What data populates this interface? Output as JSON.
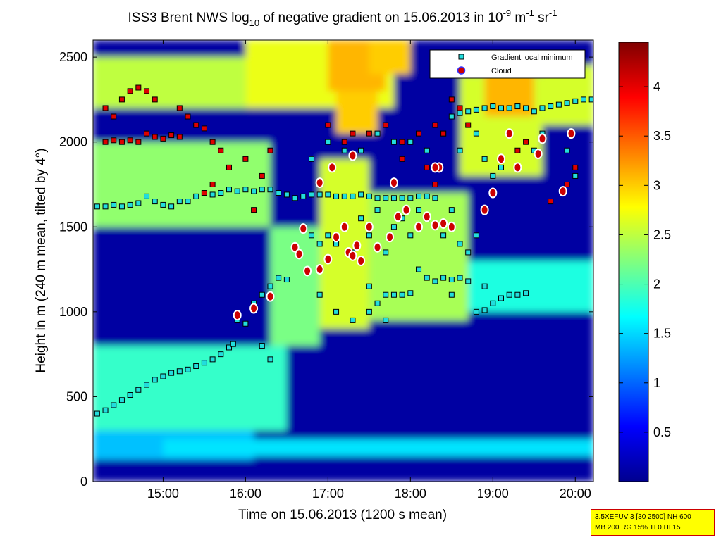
{
  "chart_data": {
    "type": "heatmap",
    "title": {
      "p1": "ISS3 Brent NWS log",
      "sub1": "10",
      "p2": " of negative gradient on 15.06.2013 in 10",
      "sup1": "-9",
      "p3": " m",
      "sup2": "-1",
      "p4": " sr",
      "sup3": "-1"
    },
    "xlabel": "Time on 15.06.2013 (1200 s mean)",
    "ylabel": "Height in m (240 m mean, tilted by 4°)",
    "xlim": [
      14.15,
      20.22
    ],
    "ylim": [
      0,
      2600
    ],
    "x_ticks": [
      {
        "value": 15,
        "label": "15:00"
      },
      {
        "value": 16,
        "label": "16:00"
      },
      {
        "value": 17,
        "label": "17:00"
      },
      {
        "value": 18,
        "label": "18:00"
      },
      {
        "value": 19,
        "label": "19:00"
      },
      {
        "value": 20,
        "label": "20:00"
      }
    ],
    "y_ticks": [
      {
        "value": 0,
        "label": "0"
      },
      {
        "value": 500,
        "label": "500"
      },
      {
        "value": 1000,
        "label": "1000"
      },
      {
        "value": 1500,
        "label": "1500"
      },
      {
        "value": 2000,
        "label": "2000"
      },
      {
        "value": 2500,
        "label": "2500"
      }
    ],
    "colorbar": {
      "range": [
        0,
        4.45
      ],
      "ticks": [
        {
          "value": 0.5,
          "label": "0.5"
        },
        {
          "value": 1,
          "label": "1"
        },
        {
          "value": 1.5,
          "label": "1.5"
        },
        {
          "value": 2,
          "label": "2"
        },
        {
          "value": 2.5,
          "label": "2.5"
        },
        {
          "value": 3,
          "label": "3"
        },
        {
          "value": 3.5,
          "label": "3.5"
        },
        {
          "value": 4,
          "label": "4"
        }
      ],
      "colormap": "jet"
    },
    "legend": {
      "position": "top-right",
      "entries": [
        "Gradient local minimum",
        "Cloud"
      ]
    },
    "bands": [
      {
        "x_from": 14.15,
        "x_to": 20.22,
        "y_from": 0,
        "y_to": 2600,
        "value": 0.15
      },
      {
        "x_from": 14.15,
        "x_to": 16.1,
        "y_from": 130,
        "y_to": 300,
        "value": 1.4
      },
      {
        "x_from": 14.15,
        "x_to": 16.5,
        "y_from": 300,
        "y_to": 800,
        "value": 1.9
      },
      {
        "x_from": 15.0,
        "x_to": 20.22,
        "y_from": 150,
        "y_to": 250,
        "value": 1.55
      },
      {
        "x_from": 14.15,
        "x_to": 16.3,
        "y_from": 1500,
        "y_to": 2000,
        "value": 2.3
      },
      {
        "x_from": 14.15,
        "x_to": 16.0,
        "y_from": 2200,
        "y_to": 2500,
        "value": 2.5
      },
      {
        "x_from": 16.0,
        "x_to": 17.8,
        "y_from": 2200,
        "y_to": 2600,
        "value": 2.7
      },
      {
        "x_from": 16.3,
        "x_to": 16.9,
        "y_from": 800,
        "y_to": 1500,
        "value": 2.2
      },
      {
        "x_from": 16.9,
        "x_to": 17.5,
        "y_from": 900,
        "y_to": 1900,
        "value": 2.6
      },
      {
        "x_from": 17.5,
        "x_to": 18.7,
        "y_from": 950,
        "y_to": 1700,
        "value": 2.4
      },
      {
        "x_from": 18.7,
        "x_to": 20.22,
        "y_from": 1000,
        "y_to": 1300,
        "value": 1.8
      },
      {
        "x_from": 18.6,
        "x_to": 19.6,
        "y_from": 1800,
        "y_to": 2400,
        "value": 2.6
      },
      {
        "x_from": 19.6,
        "x_to": 20.22,
        "y_from": 2100,
        "y_to": 2450,
        "value": 2.6
      },
      {
        "x_from": 17.1,
        "x_to": 17.6,
        "y_from": 2050,
        "y_to": 2300,
        "value": 3.0
      },
      {
        "x_from": 18.9,
        "x_to": 19.5,
        "y_from": 2150,
        "y_to": 2450,
        "value": 3.1
      },
      {
        "x_from": 17.0,
        "x_to": 17.7,
        "y_from": 2300,
        "y_to": 2600,
        "value": 3.1
      },
      {
        "x_from": 17.5,
        "x_to": 18.0,
        "y_from": 2400,
        "y_to": 2600,
        "value": 3.0
      }
    ],
    "series": [
      {
        "name": "Gradient local minimum",
        "points": [
          [
            14.2,
            400
          ],
          [
            14.3,
            420
          ],
          [
            14.4,
            450
          ],
          [
            14.5,
            480
          ],
          [
            14.6,
            510
          ],
          [
            14.7,
            540
          ],
          [
            14.8,
            570
          ],
          [
            14.9,
            600
          ],
          [
            15.0,
            620
          ],
          [
            15.1,
            640
          ],
          [
            15.2,
            650
          ],
          [
            15.3,
            660
          ],
          [
            15.4,
            680
          ],
          [
            15.5,
            700
          ],
          [
            15.6,
            720
          ],
          [
            15.7,
            750
          ],
          [
            15.8,
            790
          ],
          [
            15.85,
            810
          ],
          [
            14.2,
            1620
          ],
          [
            14.3,
            1620
          ],
          [
            14.4,
            1630
          ],
          [
            14.5,
            1620
          ],
          [
            14.6,
            1630
          ],
          [
            14.7,
            1640
          ],
          [
            14.8,
            1680
          ],
          [
            14.9,
            1650
          ],
          [
            15.0,
            1630
          ],
          [
            15.1,
            1620
          ],
          [
            15.2,
            1650
          ],
          [
            15.3,
            1650
          ],
          [
            15.4,
            1680
          ],
          [
            15.5,
            1700
          ],
          [
            15.6,
            1690
          ],
          [
            15.7,
            1700
          ],
          [
            15.8,
            1720
          ],
          [
            15.9,
            1710
          ],
          [
            16.0,
            1720
          ],
          [
            16.1,
            1710
          ],
          [
            16.2,
            1720
          ],
          [
            16.3,
            1720
          ],
          [
            16.4,
            1700
          ],
          [
            16.5,
            1690
          ],
          [
            16.6,
            1670
          ],
          [
            16.7,
            1680
          ],
          [
            16.8,
            1690
          ],
          [
            16.9,
            1690
          ],
          [
            17.0,
            1690
          ],
          [
            17.1,
            1680
          ],
          [
            17.2,
            1680
          ],
          [
            17.3,
            1680
          ],
          [
            17.4,
            1690
          ],
          [
            17.5,
            1680
          ],
          [
            17.6,
            1670
          ],
          [
            17.7,
            1670
          ],
          [
            17.8,
            1670
          ],
          [
            17.9,
            1670
          ],
          [
            18.0,
            1670
          ],
          [
            18.1,
            1680
          ],
          [
            18.2,
            1680
          ],
          [
            18.3,
            1670
          ],
          [
            15.9,
            950
          ],
          [
            16.0,
            930
          ],
          [
            16.1,
            1050
          ],
          [
            16.2,
            1100
          ],
          [
            16.3,
            1150
          ],
          [
            16.4,
            1200
          ],
          [
            16.5,
            1190
          ],
          [
            17.5,
            1000
          ],
          [
            17.6,
            1050
          ],
          [
            17.7,
            1100
          ],
          [
            17.8,
            1100
          ],
          [
            17.9,
            1100
          ],
          [
            18.0,
            1110
          ],
          [
            18.2,
            1200
          ],
          [
            18.3,
            1180
          ],
          [
            18.4,
            1200
          ],
          [
            18.5,
            1190
          ],
          [
            18.6,
            1200
          ],
          [
            18.7,
            1180
          ],
          [
            18.8,
            1000
          ],
          [
            18.9,
            1010
          ],
          [
            19.0,
            1050
          ],
          [
            19.1,
            1080
          ],
          [
            19.2,
            1100
          ],
          [
            19.3,
            1100
          ],
          [
            19.4,
            1110
          ],
          [
            18.5,
            2150
          ],
          [
            18.6,
            2170
          ],
          [
            18.7,
            2180
          ],
          [
            18.8,
            2190
          ],
          [
            18.9,
            2200
          ],
          [
            19.0,
            2210
          ],
          [
            19.1,
            2200
          ],
          [
            19.2,
            2200
          ],
          [
            19.3,
            2210
          ],
          [
            19.4,
            2200
          ],
          [
            19.5,
            2180
          ],
          [
            19.6,
            2200
          ],
          [
            19.7,
            2210
          ],
          [
            19.8,
            2220
          ],
          [
            19.9,
            2230
          ],
          [
            20.0,
            2240
          ],
          [
            20.1,
            2250
          ],
          [
            20.2,
            2250
          ],
          [
            16.7,
            1500
          ],
          [
            16.8,
            1450
          ],
          [
            16.9,
            1400
          ],
          [
            17.0,
            1450
          ],
          [
            17.1,
            1400
          ],
          [
            17.2,
            1500
          ],
          [
            17.3,
            1350
          ],
          [
            17.4,
            1550
          ],
          [
            17.5,
            1450
          ],
          [
            17.6,
            1600
          ],
          [
            17.7,
            1350
          ],
          [
            17.8,
            1500
          ],
          [
            17.9,
            1550
          ],
          [
            18.0,
            1450
          ],
          [
            18.1,
            1600
          ],
          [
            18.2,
            1550
          ],
          [
            18.3,
            1500
          ],
          [
            18.4,
            1450
          ],
          [
            18.5,
            1600
          ],
          [
            18.6,
            1400
          ],
          [
            18.7,
            1350
          ],
          [
            18.8,
            1450
          ],
          [
            18.9,
            1900
          ],
          [
            19.0,
            1800
          ],
          [
            19.1,
            1850
          ],
          [
            19.2,
            2050
          ],
          [
            19.5,
            1950
          ],
          [
            19.6,
            2050
          ],
          [
            19.9,
            1950
          ],
          [
            20.0,
            1800
          ],
          [
            16.8,
            1900
          ],
          [
            17.0,
            2000
          ],
          [
            17.2,
            1950
          ],
          [
            17.4,
            1950
          ],
          [
            17.6,
            2050
          ],
          [
            17.8,
            2000
          ],
          [
            18.0,
            2000
          ],
          [
            18.2,
            1950
          ],
          [
            18.4,
            2050
          ],
          [
            18.6,
            1950
          ],
          [
            18.8,
            2050
          ],
          [
            16.2,
            800
          ],
          [
            16.3,
            720
          ],
          [
            16.9,
            1100
          ],
          [
            17.1,
            1000
          ],
          [
            17.3,
            950
          ],
          [
            17.5,
            1150
          ],
          [
            17.7,
            950
          ],
          [
            18.1,
            1250
          ],
          [
            18.5,
            1100
          ],
          [
            18.9,
            1150
          ]
        ]
      },
      {
        "name": "Red squares",
        "points": [
          [
            14.3,
            2000
          ],
          [
            14.4,
            2010
          ],
          [
            14.5,
            2000
          ],
          [
            14.6,
            2010
          ],
          [
            14.7,
            2000
          ],
          [
            14.8,
            2050
          ],
          [
            14.9,
            2030
          ],
          [
            15.0,
            2020
          ],
          [
            15.1,
            2040
          ],
          [
            15.2,
            2030
          ],
          [
            14.3,
            2200
          ],
          [
            14.4,
            2150
          ],
          [
            14.5,
            2250
          ],
          [
            14.6,
            2300
          ],
          [
            14.7,
            2320
          ],
          [
            14.8,
            2300
          ],
          [
            14.9,
            2250
          ],
          [
            15.2,
            2200
          ],
          [
            15.3,
            2150
          ],
          [
            15.4,
            2100
          ],
          [
            15.5,
            2080
          ],
          [
            15.6,
            2000
          ],
          [
            15.7,
            1950
          ],
          [
            15.5,
            1700
          ],
          [
            15.6,
            1750
          ],
          [
            15.8,
            1850
          ],
          [
            16.0,
            1900
          ],
          [
            16.2,
            1800
          ],
          [
            16.3,
            1950
          ],
          [
            16.1,
            1600
          ],
          [
            17.0,
            2100
          ],
          [
            17.2,
            2000
          ],
          [
            17.3,
            2050
          ],
          [
            17.5,
            2050
          ],
          [
            17.7,
            2100
          ],
          [
            17.9,
            2000
          ],
          [
            18.1,
            2050
          ],
          [
            18.3,
            2100
          ],
          [
            18.4,
            2050
          ],
          [
            18.5,
            2250
          ],
          [
            18.6,
            2200
          ],
          [
            18.7,
            2100
          ],
          [
            17.9,
            1900
          ],
          [
            18.2,
            1850
          ],
          [
            18.3,
            1750
          ],
          [
            19.3,
            1950
          ],
          [
            19.4,
            2000
          ],
          [
            19.7,
            1650
          ],
          [
            19.9,
            1750
          ],
          [
            20.0,
            1850
          ]
        ]
      },
      {
        "name": "Cloud",
        "points": [
          [
            15.9,
            980
          ],
          [
            16.1,
            1020
          ],
          [
            16.3,
            1090
          ],
          [
            16.6,
            1380
          ],
          [
            16.65,
            1340
          ],
          [
            16.7,
            1490
          ],
          [
            16.75,
            1240
          ],
          [
            16.9,
            1250
          ],
          [
            17.0,
            1310
          ],
          [
            17.05,
            1850
          ],
          [
            17.1,
            1440
          ],
          [
            17.2,
            1500
          ],
          [
            17.25,
            1350
          ],
          [
            17.3,
            1330
          ],
          [
            17.35,
            1390
          ],
          [
            17.4,
            1300
          ],
          [
            17.5,
            1500
          ],
          [
            17.6,
            1380
          ],
          [
            17.75,
            1440
          ],
          [
            17.85,
            1560
          ],
          [
            17.95,
            1600
          ],
          [
            18.1,
            1500
          ],
          [
            18.2,
            1560
          ],
          [
            18.3,
            1510
          ],
          [
            18.35,
            1850
          ],
          [
            18.4,
            1520
          ],
          [
            18.5,
            1500
          ],
          [
            18.9,
            1600
          ],
          [
            19.0,
            1700
          ],
          [
            19.1,
            1900
          ],
          [
            19.2,
            2050
          ],
          [
            19.3,
            1850
          ],
          [
            19.55,
            1930
          ],
          [
            19.6,
            2020
          ],
          [
            19.85,
            1710
          ],
          [
            19.95,
            2050
          ],
          [
            17.3,
            1920
          ],
          [
            18.3,
            1850
          ],
          [
            17.8,
            1760
          ],
          [
            16.9,
            1760
          ]
        ]
      }
    ]
  },
  "info_box": {
    "line1": "3.5XEFUV 3 [30 2500] NH 600",
    "line2": "MB 200 RG 15% TI 0 HI 15"
  },
  "colors": {
    "gradient_min_face": "#22dddd",
    "gradient_min_edge": "#000000",
    "red_square_face": "#dd0000",
    "cloud_face": "#cc0000",
    "cloud_edge": "#ffffff"
  }
}
